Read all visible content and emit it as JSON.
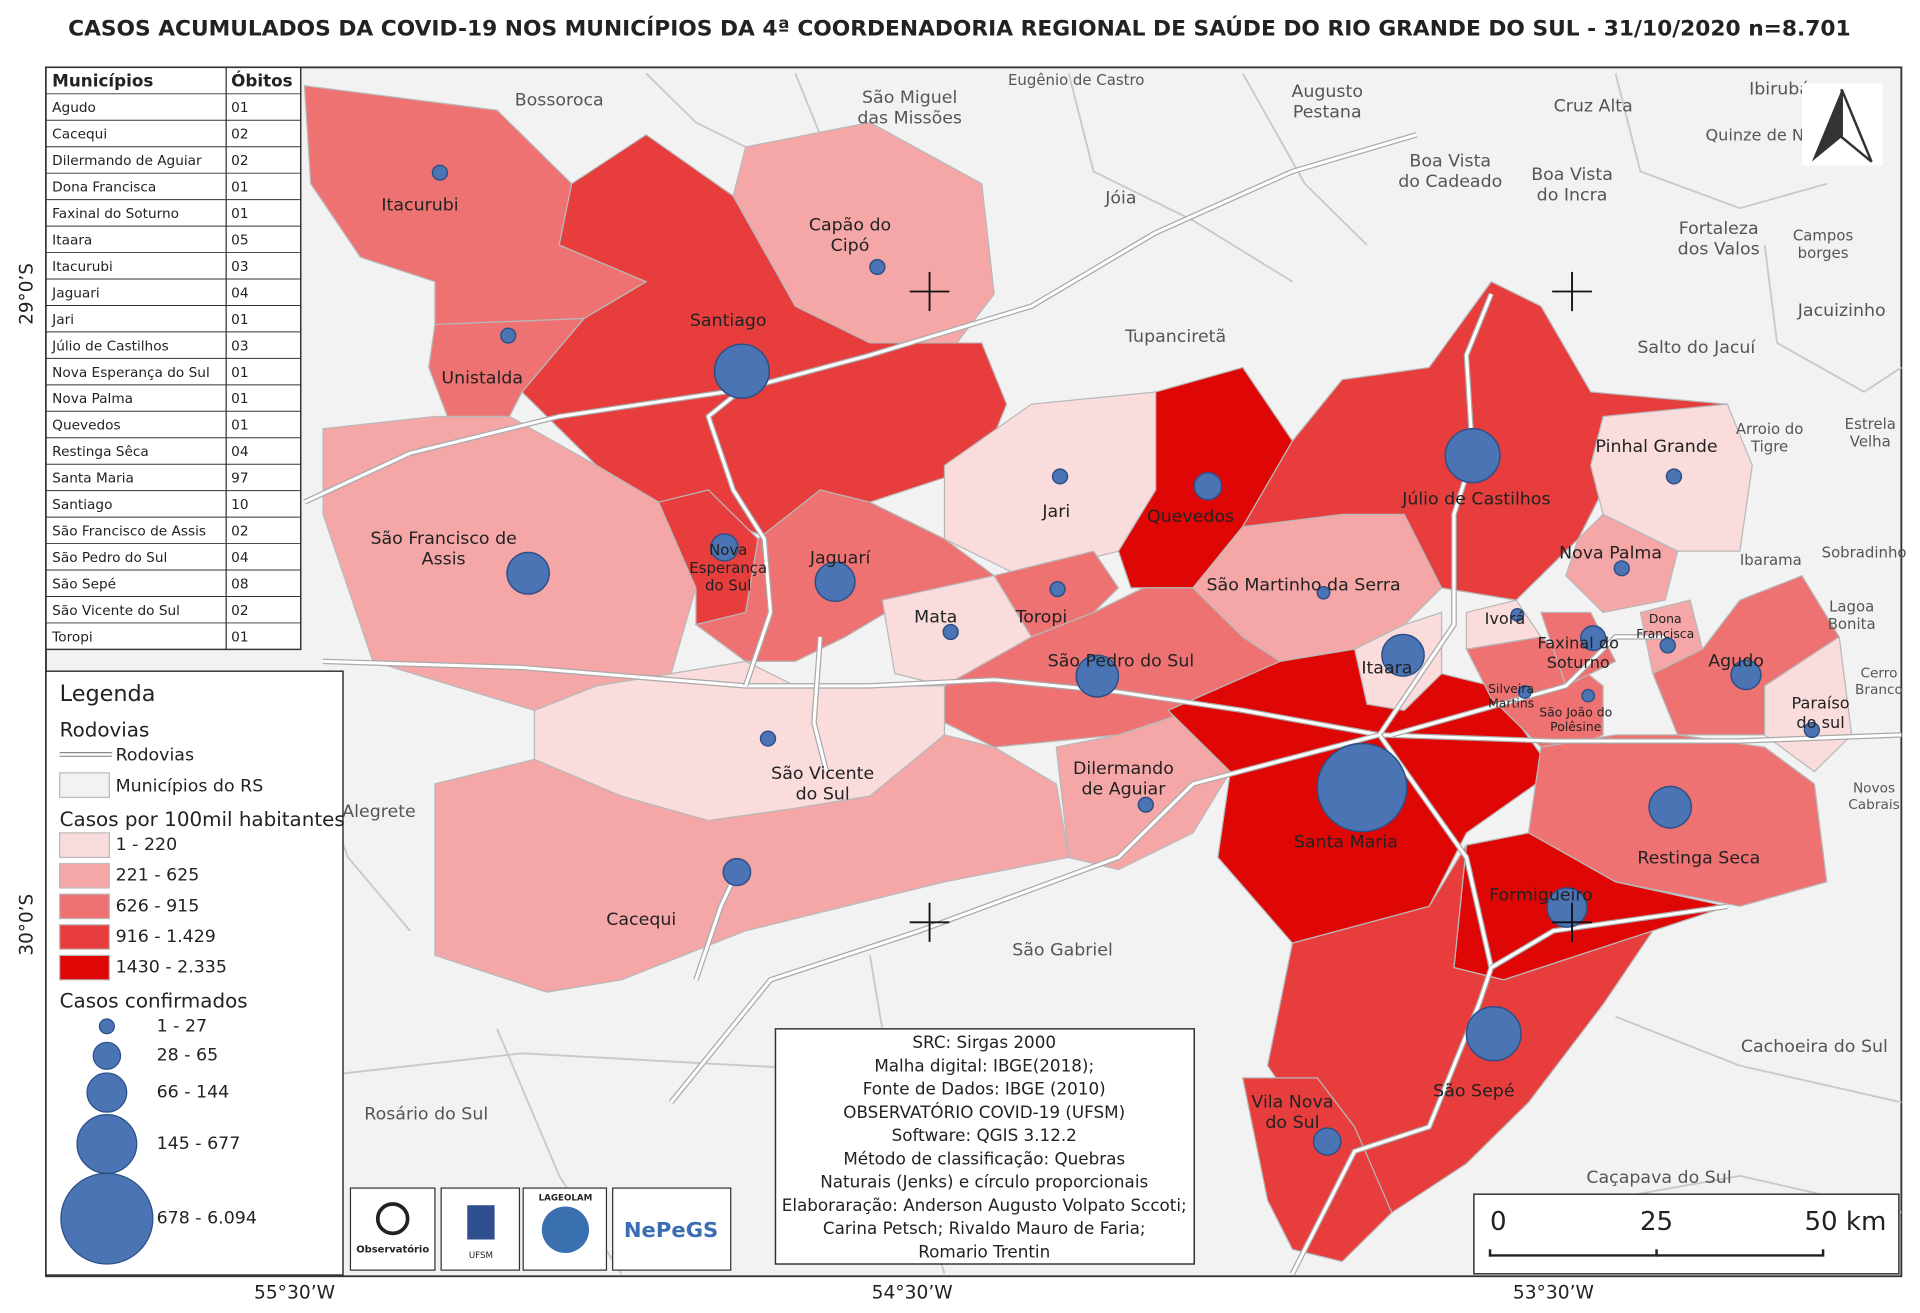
{
  "title": "CASOS ACUMULADOS DA COVID-19 NOS MUNICÍPIOS DA 4ª COORDENADORIA REGIONAL DE SAÚDE DO RIO GRANDE DO SUL - 31/10/2020 n=8.701",
  "table": {
    "headers": [
      "Municípios",
      "Óbitos"
    ],
    "rows": [
      [
        "Agudo",
        "01"
      ],
      [
        "Cacequi",
        "02"
      ],
      [
        "Dilermando de Aguiar",
        "02"
      ],
      [
        "Dona Francisca",
        "01"
      ],
      [
        "Faxinal do Soturno",
        "01"
      ],
      [
        "Itaara",
        "05"
      ],
      [
        "Itacurubi",
        "03"
      ],
      [
        "Jaguari",
        "04"
      ],
      [
        "Jari",
        "01"
      ],
      [
        "Júlio de Castilhos",
        "03"
      ],
      [
        "Nova Esperança do Sul",
        "01"
      ],
      [
        "Nova Palma",
        "01"
      ],
      [
        "Quevedos",
        "01"
      ],
      [
        "Restinga Sêca",
        "04"
      ],
      [
        "Santa Maria",
        "97"
      ],
      [
        "Santiago",
        "10"
      ],
      [
        "São Francisco de Assis",
        "02"
      ],
      [
        "São Pedro do Sul",
        "04"
      ],
      [
        "São Sepé",
        "08"
      ],
      [
        "São Vicente do Sul",
        "02"
      ],
      [
        "Toropi",
        "01"
      ]
    ]
  },
  "legend": {
    "title": "Legenda",
    "roads_title": "Rodovias",
    "roads_item": "Rodovias",
    "municipalities_item": "Municípios do RS",
    "rate_title": "Casos por 100mil habitantes",
    "rate_classes": [
      {
        "label": "1 - 220",
        "color": "#fbdcdc"
      },
      {
        "label": "221 - 625",
        "color": "#f5a7a7"
      },
      {
        "label": "626 - 915",
        "color": "#ef7272"
      },
      {
        "label": "916 - 1.429",
        "color": "#e83d3d"
      },
      {
        "label": "1430 - 2.335",
        "color": "#df0606"
      }
    ],
    "cases_title": "Casos confirmados",
    "cases_classes": [
      "1 - 27",
      "28 - 65",
      "66 - 144",
      "145 - 677",
      "678 - 6.094"
    ]
  },
  "map_labels": [
    [
      "Bossoroca"
    ],
    [
      "São Miguel",
      "das Missões"
    ],
    [
      "Eugênio de Castro"
    ],
    [
      "Augusto",
      "Pestana"
    ],
    [
      "Cruz Alta"
    ],
    [
      "Ibirubá"
    ],
    [
      "Quinze de N"
    ],
    [
      "Boa Vista",
      "do Cadeado"
    ],
    [
      "Boa Vista",
      "do Incra"
    ],
    [
      "Jóia"
    ],
    [
      "Fortaleza",
      "dos Valos"
    ],
    [
      "Campos",
      "borges"
    ],
    [
      "Jacuizinho"
    ],
    [
      "Tupanciretã"
    ],
    [
      "Salto do Jacuí"
    ],
    [
      "Arroio do",
      "Tigre"
    ],
    [
      "Estrela",
      "Velha"
    ],
    [
      "Ibarama"
    ],
    [
      "Sobradinho"
    ],
    [
      "Lagoa",
      "Bonita"
    ],
    [
      "Cerro",
      "Branco"
    ],
    [
      "Novos",
      "Cabrais"
    ],
    [
      "Alegrete"
    ],
    [
      "São Gabriel"
    ],
    [
      "Cachoeira do Sul"
    ],
    [
      "Rosário do Sul"
    ],
    [
      "Caçapava do Sul"
    ],
    [
      "Itacurubi"
    ],
    [
      "Capão do",
      "Cipó"
    ],
    [
      "Santiago"
    ],
    [
      "Unistalda"
    ],
    [
      "Jari"
    ],
    [
      "Quevedos"
    ],
    [
      "Júlio de Castilhos"
    ],
    [
      "Pinhal Grande"
    ],
    [
      "São Francisco de",
      "Assis"
    ],
    [
      "Nova",
      "Esperança",
      "do Sul"
    ],
    [
      "Jaguarí"
    ],
    [
      "Nova Palma"
    ],
    [
      "Mata"
    ],
    [
      "Toropi"
    ],
    [
      "São Martinho da Serra"
    ],
    [
      "Ivorá"
    ],
    [
      "Faxinal do",
      "Soturno"
    ],
    [
      "Dona",
      "Francisca"
    ],
    [
      "Agudo"
    ],
    [
      "São Pedro do Sul"
    ],
    [
      "Itaara"
    ],
    [
      "Silveira",
      "Martins"
    ],
    [
      "São João do",
      "Polêsine"
    ],
    [
      "Paraíso",
      "do sul"
    ],
    [
      "São Vicente",
      "do Sul"
    ],
    [
      "Dilermando",
      "de Aguiar"
    ],
    [
      "Santa Maria"
    ],
    [
      "Restinga Seca"
    ],
    [
      "Formigueiro"
    ],
    [
      "Cacequi"
    ],
    [
      "São Sepé"
    ],
    [
      "Vila Nova",
      "do Sul"
    ]
  ],
  "info_box": [
    "SRC: Sirgas 2000",
    "Malha digital: IBGE(2018);",
    "Fonte de Dados: IBGE (2010)",
    "OBSERVATÓRIO COVID-19 (UFSM)",
    "Software: QGIS 3.12.2",
    "Método de classificação: Quebras",
    "Naturais (Jenks) e círculo proporcionais",
    "Elaboraração: Anderson Augusto Volpato Sccoti;",
    "Carina Petsch; Rivaldo Mauro de Faria;",
    "Romario Trentin"
  ],
  "scale_bar": [
    "0",
    "25",
    "50 km"
  ],
  "coordinates": {
    "lat": [
      "29°0’S",
      "30°0’S"
    ],
    "lon": [
      "55°30’W",
      "54°30’W",
      "53°30’W"
    ]
  },
  "logos": [
    "Observatório",
    "UFSM",
    "LAGEOLAM",
    "NePeGS"
  ]
}
